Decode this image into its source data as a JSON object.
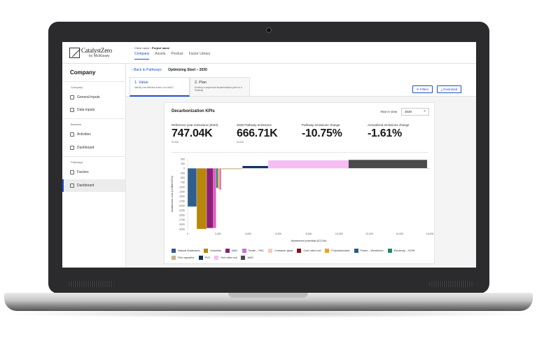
{
  "topbar": {
    "logo_line1": "CatalystZero",
    "logo_line2": "by McKinsey",
    "breadcrumb_client": "Client name",
    "breadcrumb_project": "Project name",
    "tabs": [
      "Company",
      "Assets",
      "Product",
      "Factor Library"
    ]
  },
  "sidebar": {
    "title": "Company",
    "sections": [
      {
        "heading": "Company",
        "items": [
          "General inputs",
          "Data inputs"
        ]
      },
      {
        "heading": "Baseline",
        "items": [
          "Activities",
          "Dashboard"
        ]
      },
      {
        "heading": "Pathways",
        "items": [
          "Factors",
          "Dashboard"
        ]
      }
    ]
  },
  "header": {
    "back_label": "Back to Pathways",
    "page_title": "Optimizing Steel – 2030",
    "steps": [
      {
        "title": "1. Value",
        "desc": "Identify cost effective levers on a MACC"
      },
      {
        "title": "2. Plan",
        "desc": "Develop a sequenced implementation plan for a Pathway"
      }
    ],
    "filters_label": "Filters",
    "download_label": "Download"
  },
  "card": {
    "title": "Decarbonization KPIs",
    "year_label": "Year in view",
    "year_value": "2030",
    "kpis": [
      {
        "label": "Reference year emissions (2023)",
        "value": "747.04K",
        "unit": "tCO2e"
      },
      {
        "label": "2030 Pathway emissions",
        "value": "666.71K",
        "unit": "tCO2e"
      },
      {
        "label": "Pathway emissions change",
        "value": "-10.75%",
        "unit": ""
      },
      {
        "label": "Annualized emissions change",
        "value": "-1.61%",
        "unit": ""
      }
    ]
  },
  "chart_data": {
    "type": "bar",
    "variant": "marginal-abatement-cost-curve",
    "xlabel": "Abatement potential",
    "xlabel_unit": "(tCO2e)",
    "ylabel": "Abatement cost",
    "ylabel_unit": "(US$/tCO2e)",
    "xlim": [
      0,
      16000
    ],
    "ylim": [
      -3250,
      500
    ],
    "x_ticks": [
      "0",
      "2,000",
      "4,000",
      "6,000",
      "8,000",
      "10,000",
      "12,000",
      "14,000",
      "16,000"
    ],
    "y_ticks": [
      "500",
      "250",
      "0",
      "-250",
      "-500",
      "-750",
      "-1000",
      "-1250",
      "-1500",
      "-1750",
      "-2000",
      "-2250",
      "-2500",
      "-2750",
      "-3000",
      "-3250"
    ],
    "bars": [
      {
        "lever": "Natural Abatement",
        "width": 600,
        "cost": -2050,
        "color": "#2f5d8f"
      },
      {
        "lever": "Industrial",
        "width": 650,
        "cost": -3250,
        "color": "#b8860b"
      },
      {
        "lever": "NMC",
        "width": 450,
        "cost": -3200,
        "color": "#8e1e7a"
      },
      {
        "lever": "Textile – PAC",
        "width": 180,
        "cost": -3200,
        "color": "#e05fc2"
      },
      {
        "lever": "Electricity – ROW",
        "width": 120,
        "cost": -1050,
        "color": "#1f8a70"
      },
      {
        "lever": "Polycarbonates",
        "width": 100,
        "cost": -1100,
        "color": "#f4a11a"
      },
      {
        "lever": "Textile – PAC",
        "width": 120,
        "cost": -1150,
        "color": "#d16fd6"
      },
      {
        "lever": "Film capacitor",
        "width": 1400,
        "cost": -50,
        "color": "#c9b48a"
      },
      {
        "lever": "PVC",
        "width": 1700,
        "cost": 130,
        "color": "#14325c"
      },
      {
        "lever": "Hot rolled coil",
        "width": 5300,
        "cost": 430,
        "color": "#f6bdf2"
      },
      {
        "lever": "NMC",
        "width": 5200,
        "cost": 460,
        "color": "#4a4a4a"
      }
    ]
  },
  "legend": [
    {
      "name": "Natural Abatement",
      "color": "#2f5d8f"
    },
    {
      "name": "Industrial",
      "color": "#b8860b"
    },
    {
      "name": "NMC",
      "color": "#8e1e7a"
    },
    {
      "name": "Textile – PAC",
      "color": "#d16fd6"
    },
    {
      "name": "Container glass",
      "color": "#f7cbb7"
    },
    {
      "name": "Cold rolled coil",
      "color": "#8b0f1a"
    },
    {
      "name": "Polycarbonates",
      "color": "#f4a11a"
    },
    {
      "name": "Power – Windshore",
      "color": "#2a5c8a"
    },
    {
      "name": "Electricity – ROW",
      "color": "#1f8a70"
    },
    {
      "name": "Film capacitor",
      "color": "#c9b48a"
    },
    {
      "name": "PVC",
      "color": "#14325c"
    },
    {
      "name": "Hot rolled coil",
      "color": "#f6bdf2"
    },
    {
      "name": "NMC",
      "color": "#4a4a4a"
    }
  ]
}
